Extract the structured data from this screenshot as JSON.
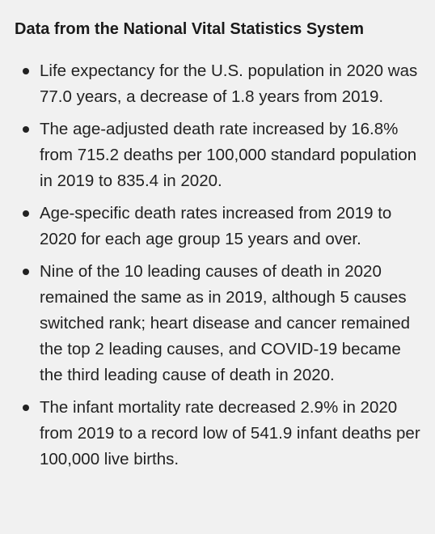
{
  "title": "Data from the National Vital Statistics System",
  "items": [
    "Life expectancy for the U.S. population in 2020 was 77.0 years, a decrease of 1.8 years from 2019.",
    "The age-adjusted death rate increased by 16.8% from 715.2 deaths per 100,000 standard population in 2019 to 835.4 in 2020.",
    "Age-specific death rates increased from 2019 to 2020 for each age group 15 years and over.",
    "Nine of the 10 leading causes of death in 2020 remained the same as in 2019, although 5 causes switched rank; heart disease and cancer remained the top 2 leading causes, and COVID-19 became the third leading cause of death in 2020.",
    "The infant mortality rate decreased 2.9% in 2020 from 2019 to a record low of 541.9 infant deaths per 100,000 live births."
  ]
}
